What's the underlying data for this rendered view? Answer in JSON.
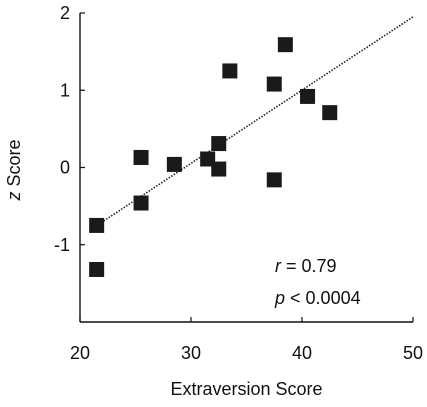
{
  "chart_data": {
    "type": "scatter",
    "title": "",
    "xlabel": "Extraversion Score",
    "ylabel_prefix": "z",
    "ylabel_suffix": " Score",
    "xlim": [
      20,
      50
    ],
    "ylim": [
      -2,
      2
    ],
    "x_ticks": [
      20,
      30,
      40,
      50
    ],
    "x_tick_labels": [
      "20",
      "30",
      "40",
      "50"
    ],
    "y_ticks": [
      2,
      1,
      0,
      -1
    ],
    "y_tick_labels": [
      "2",
      "1",
      "0",
      "-1"
    ],
    "grid": false,
    "legend": "none",
    "series": [
      {
        "marker": "square",
        "color": "#1a1a1a",
        "points": [
          {
            "x": 21.5,
            "y": -0.75
          },
          {
            "x": 21.5,
            "y": -1.32
          },
          {
            "x": 25.5,
            "y": 0.13
          },
          {
            "x": 25.5,
            "y": -0.46
          },
          {
            "x": 28.5,
            "y": 0.04
          },
          {
            "x": 31.5,
            "y": 0.11
          },
          {
            "x": 32.5,
            "y": 0.31
          },
          {
            "x": 32.5,
            "y": -0.02
          },
          {
            "x": 33.5,
            "y": 1.25
          },
          {
            "x": 37.5,
            "y": 1.08
          },
          {
            "x": 37.5,
            "y": -0.16
          },
          {
            "x": 38.5,
            "y": 1.59
          },
          {
            "x": 40.5,
            "y": 0.92
          },
          {
            "x": 42.5,
            "y": 0.71
          }
        ]
      }
    ],
    "trendline": {
      "style": "dotted",
      "color": "#222222",
      "x_start": 21.0,
      "y_start": -0.8,
      "x_end": 50.0,
      "y_end": 1.95
    },
    "annotations": {
      "r_symbol": "r",
      "r_text": " = 0.79",
      "p_symbol": "p",
      "p_text": " < 0.0004"
    }
  }
}
